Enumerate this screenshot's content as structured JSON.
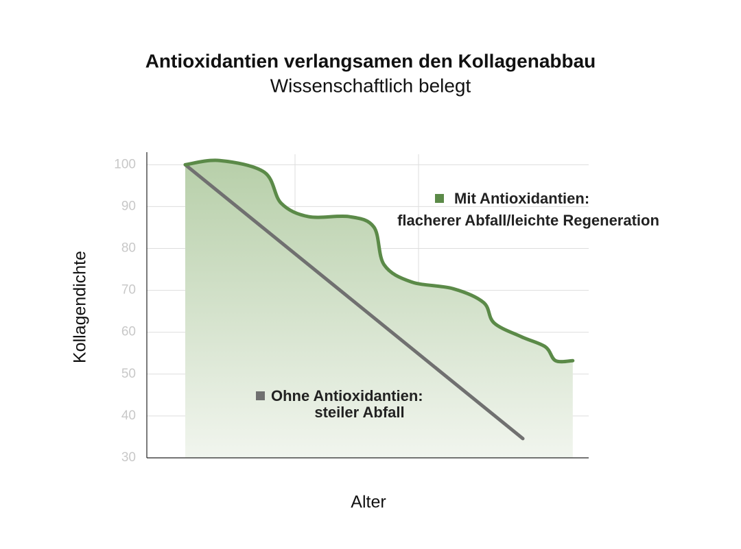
{
  "chart_data": {
    "type": "line",
    "title": "Antioxidantien verlangsamen den Kollagenabbau",
    "subtitle": "Wissenschaftlich belegt",
    "xlabel": "Alter",
    "ylabel": "Kollagendichte",
    "xlim": [
      0,
      100
    ],
    "ylim": [
      30,
      103
    ],
    "yticks": [
      30,
      40,
      50,
      60,
      70,
      80,
      90,
      100
    ],
    "grid": true,
    "series": [
      {
        "name": "Mit Antioxidantien:",
        "description": "flacherer Abfall/leichte Regeneration",
        "color": "#5b8a48",
        "x": [
          8.7,
          16.5,
          26.6,
          30.4,
          36.6,
          45.8,
          51.4,
          53.7,
          59.9,
          69.3,
          76.2,
          78.6,
          84.8,
          90.2,
          92.5,
          96.4
        ],
        "values": [
          100,
          101,
          98.2,
          90.8,
          87.6,
          87.6,
          85.1,
          76.1,
          72.0,
          70.4,
          67.1,
          62.2,
          58.9,
          56.5,
          53.2,
          53.2
        ]
      },
      {
        "name": "Ohne Antioxidantien:",
        "description": "steiler Abfall",
        "color": "#707070",
        "x": [
          8.7,
          85.1
        ],
        "values": [
          100,
          34.6
        ]
      }
    ]
  }
}
